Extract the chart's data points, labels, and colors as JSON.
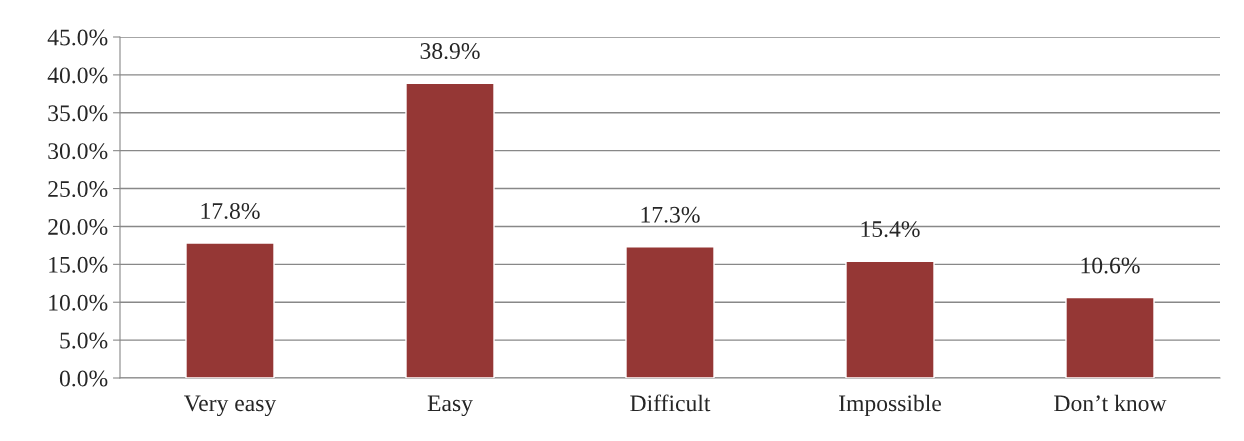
{
  "chart_data": {
    "type": "bar",
    "categories": [
      "Very easy",
      "Easy",
      "Difficult",
      "Impossible",
      "Don’t know"
    ],
    "values": [
      17.8,
      38.9,
      17.3,
      15.4,
      10.6
    ],
    "value_labels": [
      "17.8%",
      "38.9%",
      "17.3%",
      "15.4%",
      "10.6%"
    ],
    "color": "#953735",
    "ylim": [
      0,
      45
    ],
    "yticks": [
      {
        "value": 0,
        "label": "0.0%"
      },
      {
        "value": 5,
        "label": "5.0%"
      },
      {
        "value": 10,
        "label": "10.0%"
      },
      {
        "value": 15,
        "label": "15.0%"
      },
      {
        "value": 20,
        "label": "20.0%"
      },
      {
        "value": 25,
        "label": "25.0%"
      },
      {
        "value": 30,
        "label": "30.0%"
      },
      {
        "value": 35,
        "label": "35.0%"
      },
      {
        "value": 40,
        "label": "40.0%"
      },
      {
        "value": 45,
        "label": "45.0%"
      }
    ],
    "grid": "y"
  }
}
